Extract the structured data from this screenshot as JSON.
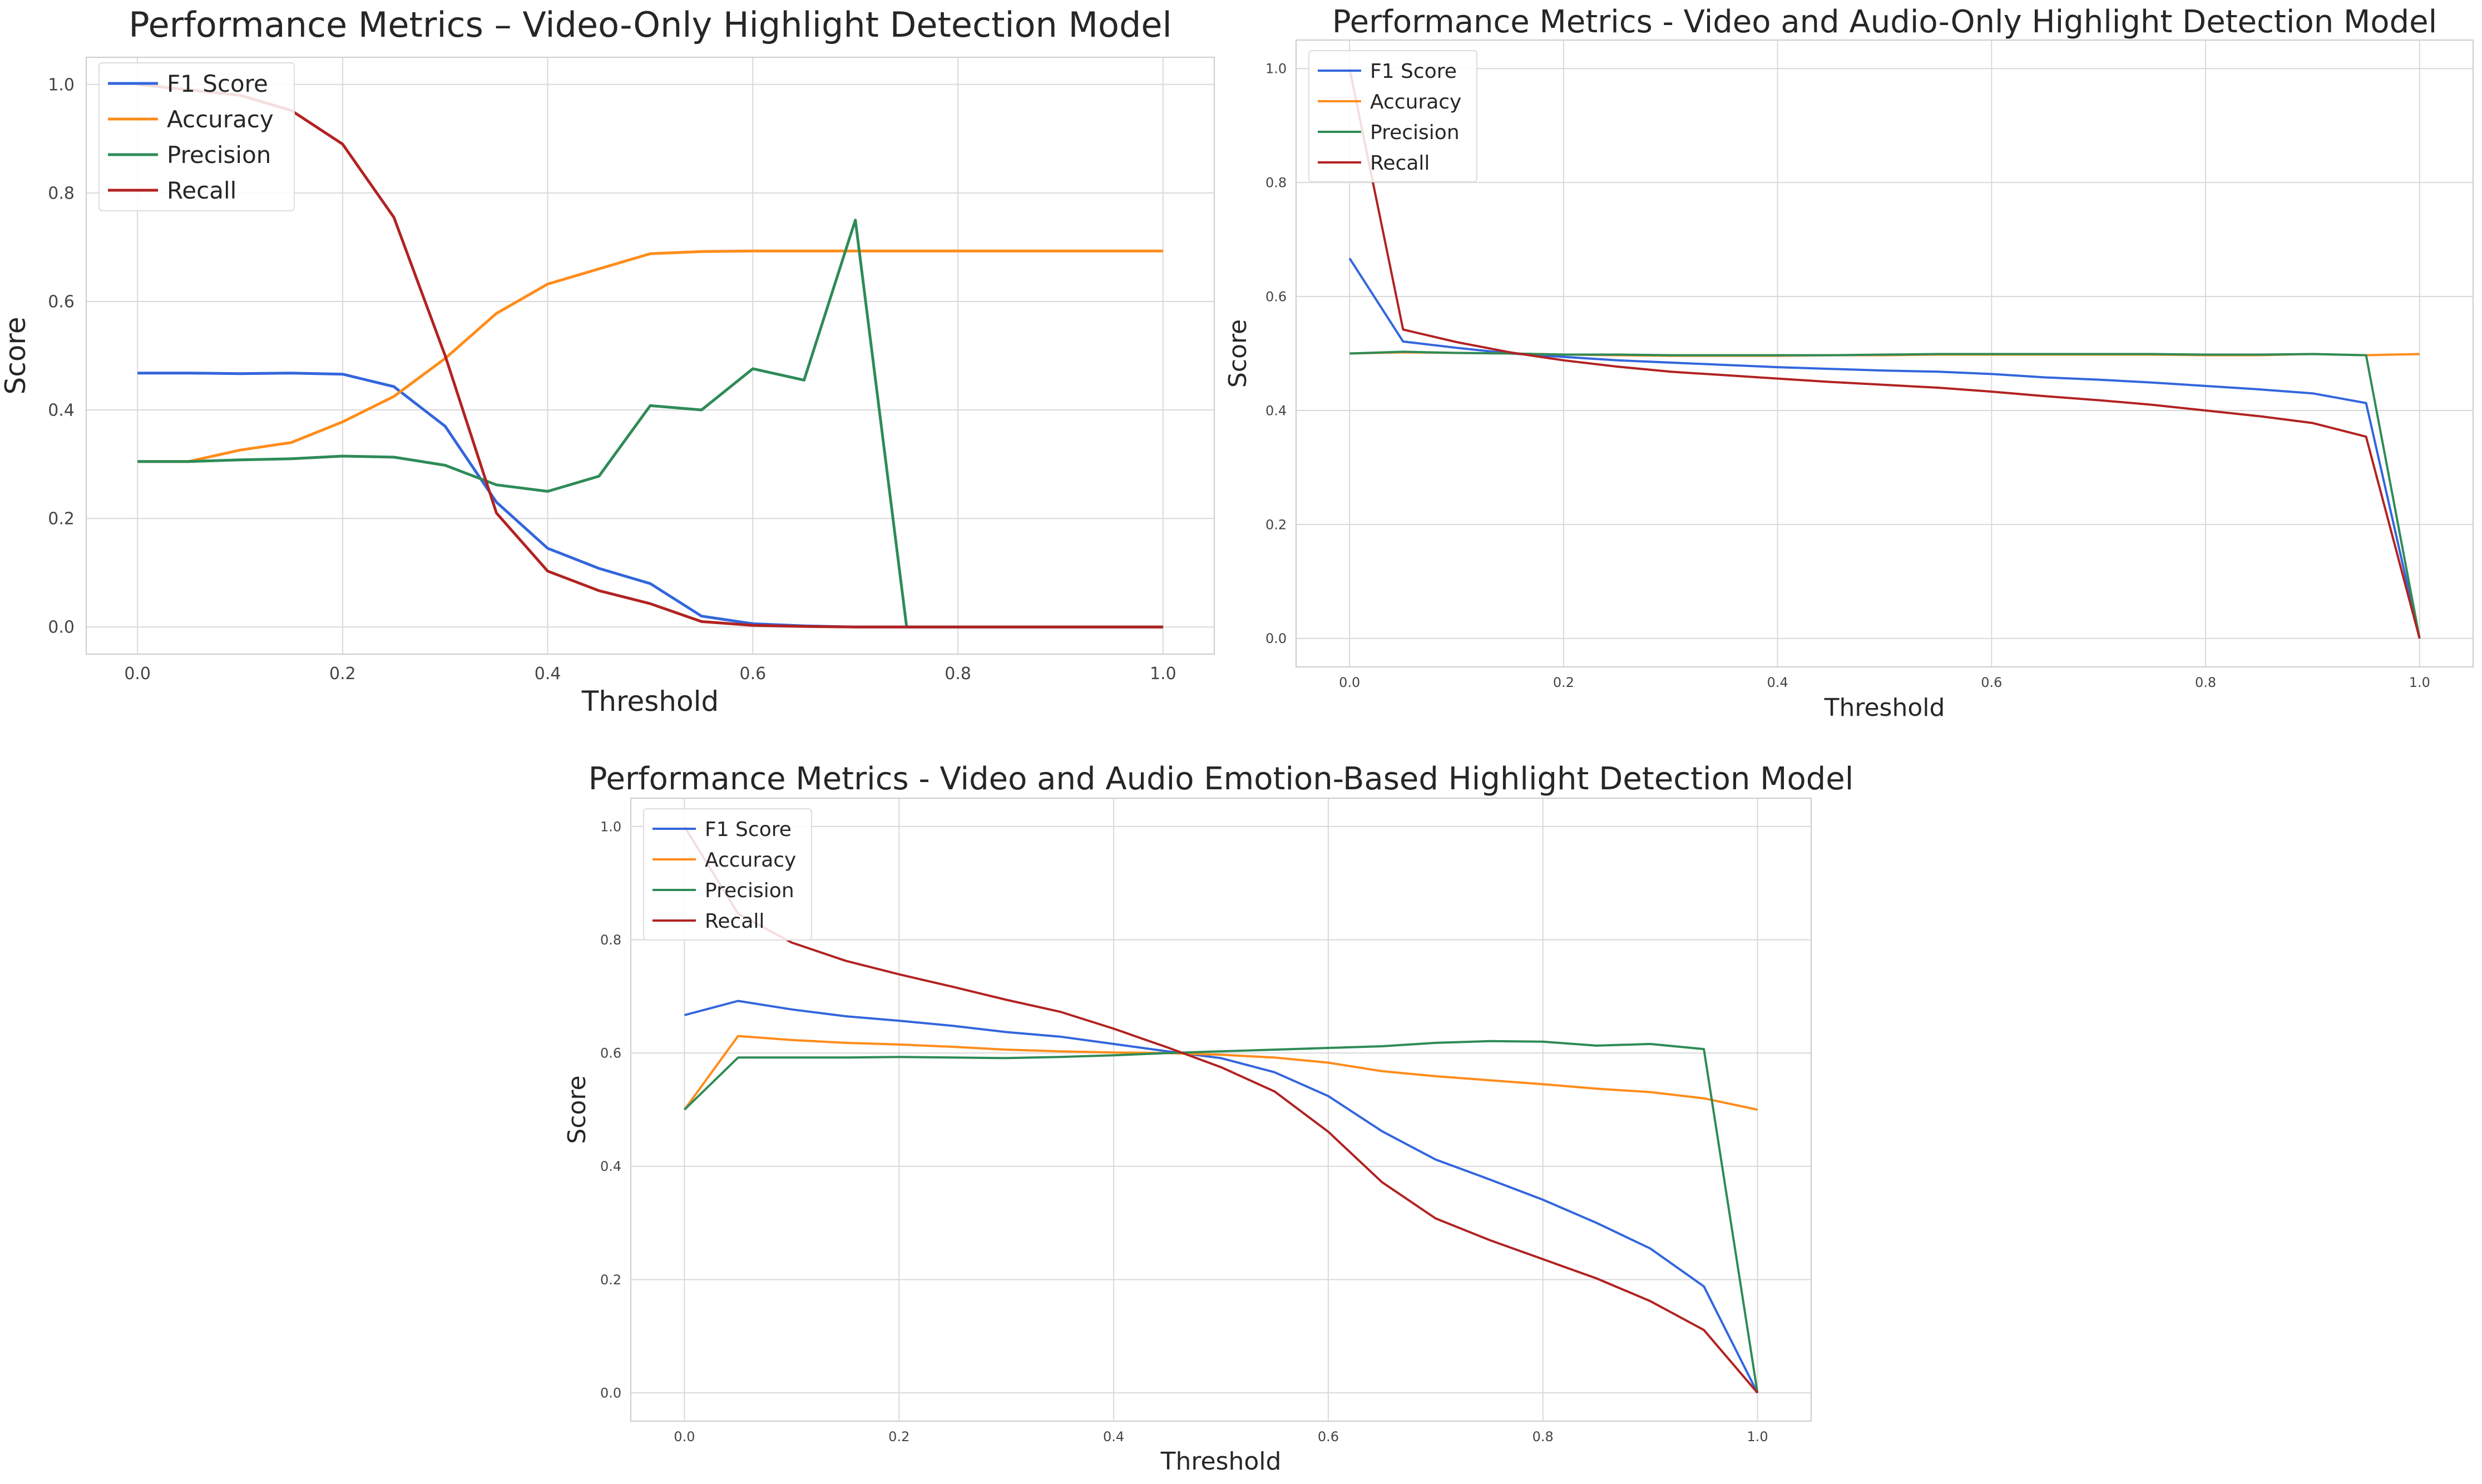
{
  "colors": {
    "f1": "#3366dd",
    "accuracy": "#ff8c1a",
    "precision": "#2e8b57",
    "recall": "#b22222",
    "grid": "#d9d9d9",
    "frame": "#cccccc",
    "text": "#262626",
    "tick": "#444444"
  },
  "chart_data": [
    {
      "type": "line",
      "title": "Performance Metrics – Video-Only Highlight Detection Model",
      "xlabel": "Threshold",
      "ylabel": "Score",
      "xlim": [
        -0.05,
        1.05
      ],
      "ylim": [
        -0.05,
        1.05
      ],
      "xticks": [
        "0.0",
        "0.2",
        "0.4",
        "0.6",
        "0.8",
        "1.0"
      ],
      "yticks": [
        "0.0",
        "0.2",
        "0.4",
        "0.6",
        "0.8",
        "1.0"
      ],
      "grid": true,
      "legend_loc": "upper left",
      "x": [
        0.0,
        0.05,
        0.1,
        0.15,
        0.2,
        0.25,
        0.3,
        0.35,
        0.4,
        0.45,
        0.5,
        0.55,
        0.6,
        0.65,
        0.7,
        0.75,
        0.8,
        0.85,
        0.9,
        0.95,
        1.0
      ],
      "series": [
        {
          "name": "F1 Score",
          "color_key": "f1",
          "values": [
            0.468,
            0.468,
            0.467,
            0.468,
            0.466,
            0.443,
            0.37,
            0.23,
            0.145,
            0.108,
            0.08,
            0.02,
            0.006,
            0.002,
            0.0,
            0.0,
            0.0,
            0.0,
            0.0,
            0.0,
            0.0
          ]
        },
        {
          "name": "Accuracy",
          "color_key": "accuracy",
          "values": [
            0.305,
            0.305,
            0.326,
            0.34,
            0.378,
            0.425,
            0.495,
            0.578,
            0.632,
            0.66,
            0.688,
            0.692,
            0.693,
            0.693,
            0.693,
            0.693,
            0.693,
            0.693,
            0.693,
            0.693,
            0.693
          ]
        },
        {
          "name": "Precision",
          "color_key": "precision",
          "values": [
            0.305,
            0.305,
            0.308,
            0.31,
            0.315,
            0.313,
            0.298,
            0.262,
            0.25,
            0.278,
            0.408,
            0.4,
            0.476,
            0.455,
            0.75,
            0.0,
            0.0,
            0.0,
            0.0,
            0.0,
            0.0
          ]
        },
        {
          "name": "Recall",
          "color_key": "recall",
          "values": [
            1.0,
            0.99,
            0.98,
            0.952,
            0.89,
            0.755,
            0.5,
            0.21,
            0.103,
            0.067,
            0.043,
            0.01,
            0.003,
            0.001,
            0.0,
            0.0,
            0.0,
            0.0,
            0.0,
            0.0,
            0.0
          ]
        }
      ]
    },
    {
      "type": "line",
      "title": "Performance Metrics - Video and Audio-Only Highlight Detection Model",
      "xlabel": "Threshold",
      "ylabel": "Score",
      "xlim": [
        -0.05,
        1.05
      ],
      "ylim": [
        -0.05,
        1.05
      ],
      "xticks": [
        "0.0",
        "0.2",
        "0.4",
        "0.6",
        "0.8",
        "1.0"
      ],
      "yticks": [
        "0.0",
        "0.2",
        "0.4",
        "0.6",
        "0.8",
        "1.0"
      ],
      "grid": true,
      "legend_loc": "upper left",
      "x": [
        0.0,
        0.05,
        0.1,
        0.15,
        0.2,
        0.25,
        0.3,
        0.35,
        0.4,
        0.45,
        0.5,
        0.55,
        0.6,
        0.65,
        0.7,
        0.75,
        0.8,
        0.85,
        0.9,
        0.95,
        1.0
      ],
      "series": [
        {
          "name": "F1 Score",
          "color_key": "f1",
          "values": [
            0.667,
            0.521,
            0.51,
            0.5,
            0.494,
            0.488,
            0.484,
            0.48,
            0.476,
            0.473,
            0.47,
            0.468,
            0.464,
            0.458,
            0.454,
            0.449,
            0.443,
            0.437,
            0.43,
            0.413,
            0.0
          ]
        },
        {
          "name": "Accuracy",
          "color_key": "accuracy",
          "values": [
            0.5,
            0.502,
            0.501,
            0.5,
            0.498,
            0.497,
            0.496,
            0.496,
            0.496,
            0.497,
            0.497,
            0.498,
            0.498,
            0.498,
            0.498,
            0.498,
            0.497,
            0.497,
            0.499,
            0.497,
            0.499
          ]
        },
        {
          "name": "Precision",
          "color_key": "precision",
          "values": [
            0.5,
            0.503,
            0.501,
            0.5,
            0.498,
            0.498,
            0.497,
            0.497,
            0.497,
            0.497,
            0.498,
            0.499,
            0.499,
            0.499,
            0.499,
            0.499,
            0.498,
            0.498,
            0.499,
            0.497,
            0.0
          ]
        },
        {
          "name": "Recall",
          "color_key": "recall",
          "values": [
            1.0,
            0.542,
            0.52,
            0.502,
            0.488,
            0.477,
            0.468,
            0.462,
            0.456,
            0.45,
            0.445,
            0.44,
            0.433,
            0.425,
            0.418,
            0.41,
            0.4,
            0.39,
            0.378,
            0.354,
            0.0
          ]
        }
      ]
    },
    {
      "type": "line",
      "title": "Performance Metrics - Video and Audio Emotion-Based Highlight Detection Model",
      "xlabel": "Threshold",
      "ylabel": "Score",
      "xlim": [
        -0.05,
        1.05
      ],
      "ylim": [
        -0.05,
        1.05
      ],
      "xticks": [
        "0.0",
        "0.2",
        "0.4",
        "0.6",
        "0.8",
        "1.0"
      ],
      "yticks": [
        "0.0",
        "0.2",
        "0.4",
        "0.6",
        "0.8",
        "1.0"
      ],
      "grid": true,
      "legend_loc": "upper left",
      "x": [
        0.0,
        0.05,
        0.1,
        0.15,
        0.2,
        0.25,
        0.3,
        0.35,
        0.4,
        0.45,
        0.5,
        0.55,
        0.6,
        0.65,
        0.7,
        0.75,
        0.8,
        0.85,
        0.9,
        0.95,
        1.0
      ],
      "series": [
        {
          "name": "F1 Score",
          "color_key": "f1",
          "values": [
            0.667,
            0.692,
            0.677,
            0.665,
            0.657,
            0.648,
            0.637,
            0.629,
            0.616,
            0.603,
            0.591,
            0.566,
            0.524,
            0.462,
            0.412,
            0.377,
            0.341,
            0.3,
            0.255,
            0.188,
            0.0
          ]
        },
        {
          "name": "Accuracy",
          "color_key": "accuracy",
          "values": [
            0.5,
            0.63,
            0.623,
            0.618,
            0.615,
            0.611,
            0.606,
            0.603,
            0.601,
            0.6,
            0.597,
            0.592,
            0.583,
            0.568,
            0.559,
            0.552,
            0.545,
            0.537,
            0.531,
            0.52,
            0.5
          ]
        },
        {
          "name": "Precision",
          "color_key": "precision",
          "values": [
            0.5,
            0.592,
            0.592,
            0.592,
            0.593,
            0.592,
            0.591,
            0.593,
            0.596,
            0.6,
            0.603,
            0.606,
            0.609,
            0.612,
            0.618,
            0.621,
            0.62,
            0.613,
            0.616,
            0.607,
            0.0
          ]
        },
        {
          "name": "Recall",
          "color_key": "recall",
          "values": [
            1.0,
            0.846,
            0.795,
            0.763,
            0.739,
            0.717,
            0.694,
            0.673,
            0.643,
            0.61,
            0.575,
            0.532,
            0.461,
            0.372,
            0.308,
            0.27,
            0.236,
            0.202,
            0.162,
            0.111,
            0.0
          ]
        }
      ]
    }
  ]
}
